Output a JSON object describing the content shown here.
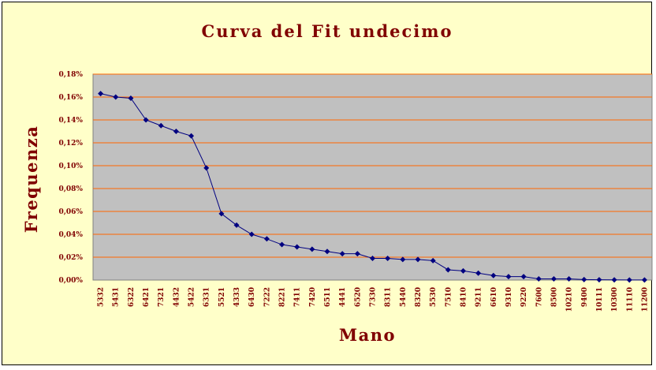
{
  "chart_data": {
    "type": "line",
    "title": "Curva del Fit undecimo",
    "xlabel": "Mano",
    "ylabel": "Frequenza",
    "ylim": [
      0,
      0.18
    ],
    "y_ticks": [
      "0,00%",
      "0,02%",
      "0,04%",
      "0,06%",
      "0,08%",
      "0,10%",
      "0,12%",
      "0,14%",
      "0,16%",
      "0,18%"
    ],
    "y_tick_values": [
      0,
      0.02,
      0.04,
      0.06,
      0.08,
      0.1,
      0.12,
      0.14,
      0.16,
      0.18
    ],
    "grid": true,
    "legend": "none",
    "plot_background": "#c0c0c0",
    "grid_color": "#ff6600",
    "series_color": "#000080",
    "categories": [
      "5332",
      "5431",
      "6322",
      "6421",
      "7321",
      "4432",
      "5422",
      "6331",
      "5521",
      "4333",
      "6430",
      "7222",
      "8221",
      "7411",
      "7420",
      "6511",
      "4441",
      "6520",
      "7330",
      "8311",
      "5440",
      "8320",
      "5530",
      "7510",
      "8410",
      "9211",
      "6610",
      "9310",
      "9220",
      "7600",
      "8500",
      "10210",
      "9400",
      "10111",
      "10300",
      "11110",
      "11200"
    ],
    "values": [
      0.163,
      0.16,
      0.159,
      0.14,
      0.135,
      0.13,
      0.126,
      0.098,
      0.058,
      0.048,
      0.04,
      0.036,
      0.031,
      0.029,
      0.027,
      0.025,
      0.023,
      0.023,
      0.019,
      0.019,
      0.018,
      0.018,
      0.017,
      0.009,
      0.008,
      0.006,
      0.004,
      0.003,
      0.003,
      0.001,
      0.001,
      0.001,
      0.0004,
      0.0003,
      0.0002,
      0.0001,
      0.0001
    ]
  }
}
